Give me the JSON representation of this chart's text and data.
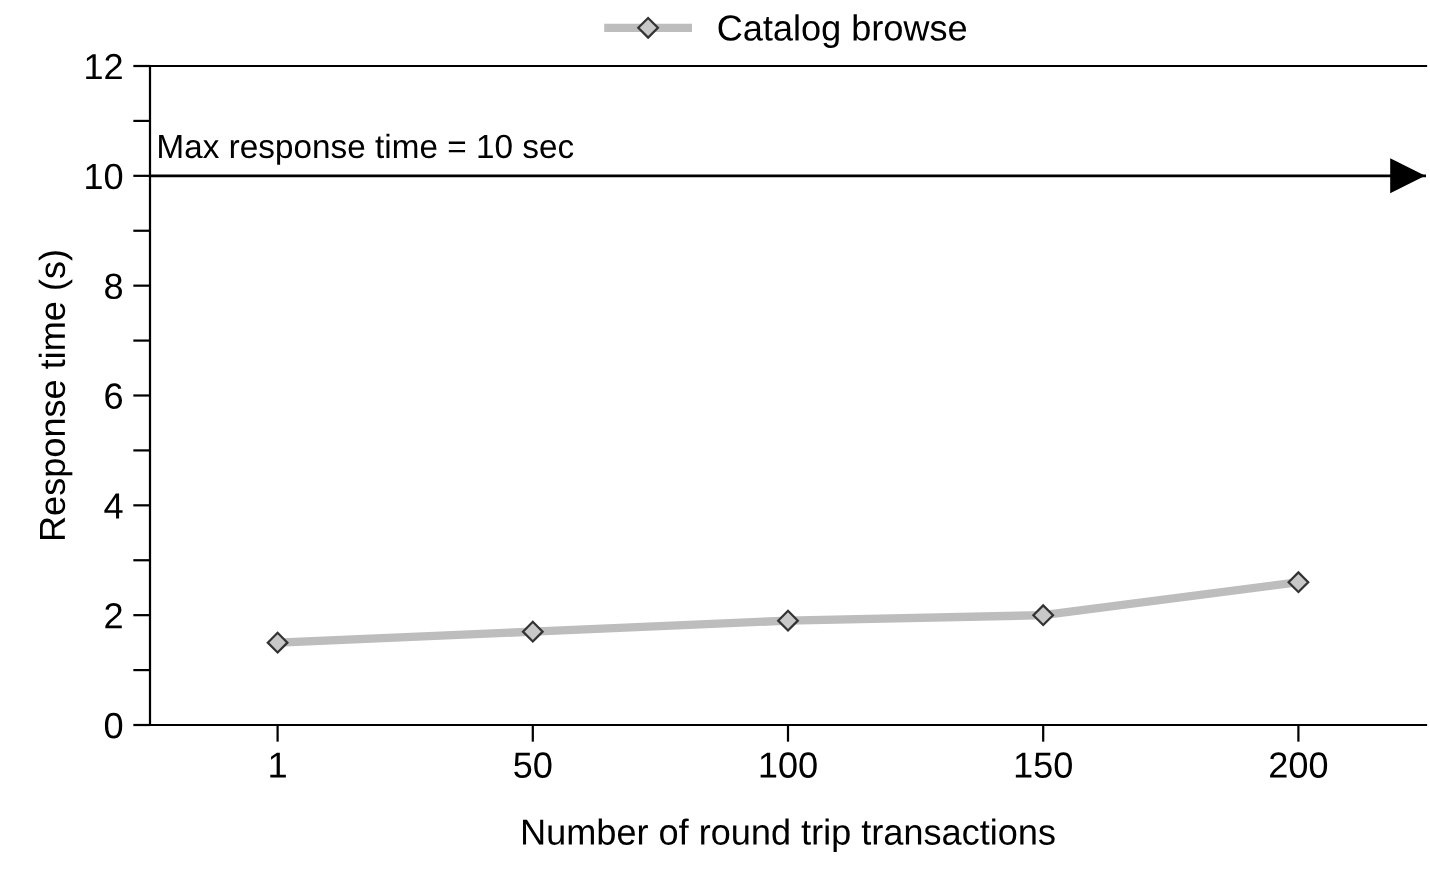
{
  "chart_data": {
    "type": "line",
    "xlabel": "Number of round trip transactions",
    "ylabel": "Response time (s)",
    "categories": [
      "1",
      "50",
      "100",
      "150",
      "200"
    ],
    "series": [
      {
        "name": "Catalog browse",
        "color": "#bdbdbd",
        "values": [
          1.5,
          1.7,
          1.9,
          2.0,
          2.6
        ]
      }
    ],
    "ylim": [
      0,
      12
    ],
    "yticks": [
      0,
      {
        "value": 1,
        "label": null
      },
      2,
      {
        "value": 3,
        "label": null
      },
      4,
      {
        "value": 5,
        "label": null
      },
      6,
      {
        "value": 7,
        "label": null
      },
      8,
      {
        "value": 9,
        "label": null
      },
      10,
      {
        "value": 11,
        "label": null
      },
      12
    ],
    "ref_lines": [
      {
        "axis": "y",
        "value": 10,
        "label": "Max response time = 10 sec",
        "color": "#000000",
        "line_style": "solid"
      }
    ],
    "marker": "diamond",
    "line_style": "solid",
    "grid": false,
    "legend": "top"
  }
}
